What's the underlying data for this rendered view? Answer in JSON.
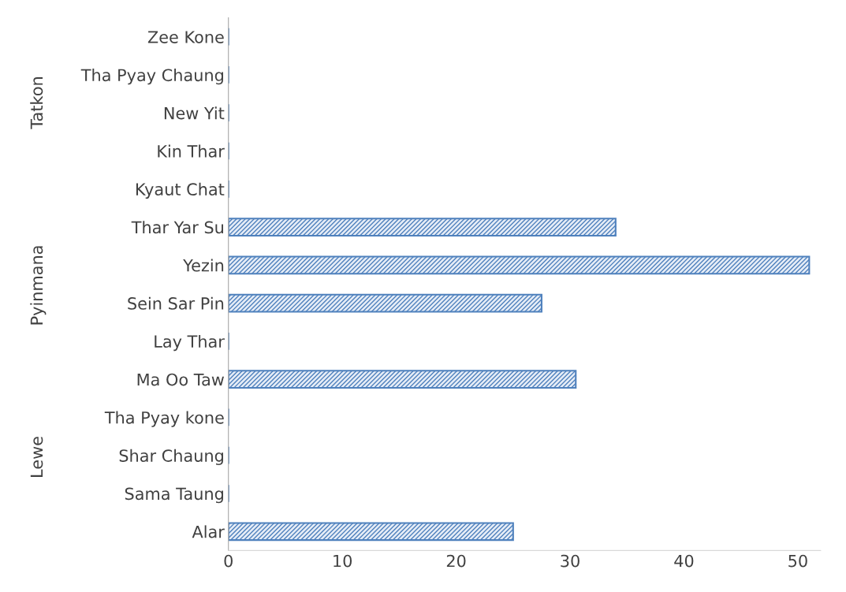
{
  "chart_data": {
    "type": "bar",
    "orientation": "horizontal",
    "categories": [
      "Zee Kone",
      "Tha Pyay Chaung",
      "New Yit",
      "Kin Thar",
      "Kyaut Chat",
      "Thar Yar Su",
      "Yezin",
      "Sein Sar Pin",
      "Lay Thar",
      "Ma Oo Taw",
      "Tha Pyay kone",
      "Shar Chaung",
      "Sama Taung",
      "Alar"
    ],
    "values": [
      0,
      0,
      0,
      0,
      0,
      34,
      51,
      27.5,
      0,
      30.5,
      0,
      0,
      0,
      25
    ],
    "color": "#4f81bd",
    "xlim": [
      0,
      52
    ],
    "xticks": [
      0,
      10,
      20,
      30,
      40,
      50
    ],
    "grid": false,
    "annotations": [
      "Tatkon",
      "Pyinmana",
      "Lewe"
    ]
  }
}
